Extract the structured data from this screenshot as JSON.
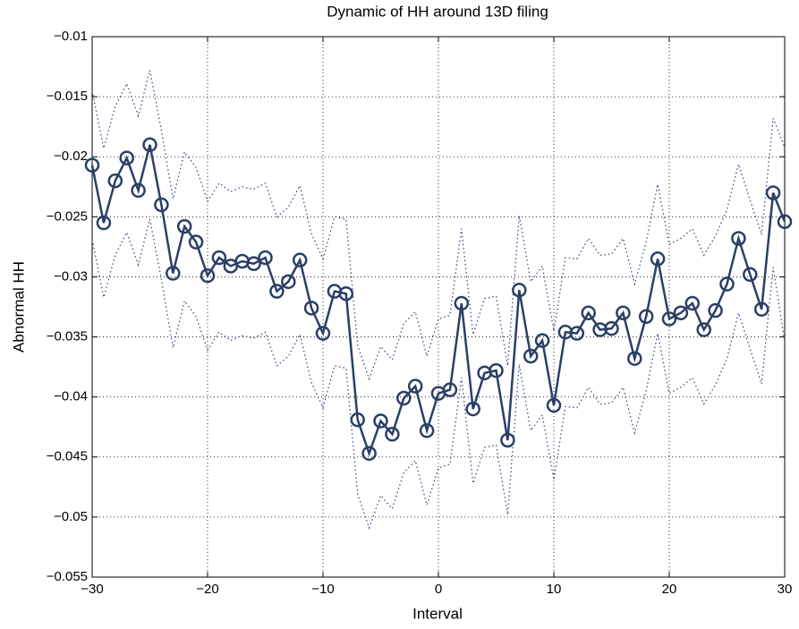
{
  "chart_data": {
    "type": "line",
    "title": "Dynamic of HH around 13D filing",
    "x_label": "Interval",
    "y_label": "Abnormal HH",
    "x": [
      -30,
      -29,
      -28,
      -27,
      -26,
      -25,
      -24,
      -23,
      -22,
      -21,
      -20,
      -19,
      -18,
      -17,
      -16,
      -15,
      -14,
      -13,
      -12,
      -11,
      -10,
      -9,
      -8,
      -7,
      -6,
      -5,
      -4,
      -3,
      -2,
      -1,
      0,
      1,
      2,
      3,
      4,
      5,
      6,
      7,
      8,
      9,
      10,
      11,
      12,
      13,
      14,
      15,
      16,
      17,
      18,
      19,
      20,
      21,
      22,
      23,
      24,
      25,
      26,
      27,
      28,
      29,
      30
    ],
    "series": [
      {
        "color": "#2b3f66",
        "style": "solid",
        "marker": "circle",
        "values": [
          -0.0207,
          -0.0255,
          -0.022,
          -0.0201,
          -0.0228,
          -0.019,
          -0.024,
          -0.0297,
          -0.0258,
          -0.0271,
          -0.0299,
          -0.0284,
          -0.0291,
          -0.0287,
          -0.0289,
          -0.0284,
          -0.0312,
          -0.0304,
          -0.0286,
          -0.0326,
          -0.0347,
          -0.0312,
          -0.0314,
          -0.0419,
          -0.0447,
          -0.042,
          -0.0431,
          -0.0401,
          -0.0391,
          -0.0428,
          -0.0397,
          -0.0394,
          -0.0322,
          -0.041,
          -0.038,
          -0.0378,
          -0.0436,
          -0.0311,
          -0.0366,
          -0.0353,
          -0.0407,
          -0.0346,
          -0.0347,
          -0.033,
          -0.0344,
          -0.0343,
          -0.033,
          -0.0368,
          -0.0333,
          -0.0285,
          -0.0335,
          -0.033,
          -0.0322,
          -0.0344,
          -0.0328,
          -0.0306,
          -0.0268,
          -0.0298,
          -0.0327,
          -0.023,
          -0.0254
        ]
      },
      {
        "color": "#3a4f80",
        "style": "dotted",
        "values": [
          -0.0145,
          -0.0193,
          -0.0158,
          -0.0139,
          -0.0166,
          -0.0128,
          -0.0178,
          -0.0235,
          -0.0196,
          -0.0209,
          -0.0237,
          -0.0222,
          -0.0229,
          -0.0225,
          -0.0227,
          -0.0222,
          -0.025,
          -0.0242,
          -0.0224,
          -0.0264,
          -0.0285,
          -0.025,
          -0.0252,
          -0.0357,
          -0.0385,
          -0.0358,
          -0.0369,
          -0.0339,
          -0.0329,
          -0.0366,
          -0.0335,
          -0.0332,
          -0.026,
          -0.0348,
          -0.0318,
          -0.0316,
          -0.0374,
          -0.0249,
          -0.0304,
          -0.0291,
          -0.0345,
          -0.0284,
          -0.0285,
          -0.0268,
          -0.0282,
          -0.0281,
          -0.0268,
          -0.0306,
          -0.0271,
          -0.0223,
          -0.0273,
          -0.0268,
          -0.026,
          -0.0282,
          -0.0266,
          -0.0244,
          -0.0206,
          -0.0236,
          -0.0265,
          -0.0168,
          -0.0192
        ]
      },
      {
        "color": "#3a4f80",
        "style": "dotted",
        "values": [
          -0.0269,
          -0.0317,
          -0.0282,
          -0.0263,
          -0.029,
          -0.0252,
          -0.0302,
          -0.0359,
          -0.032,
          -0.0333,
          -0.0361,
          -0.0346,
          -0.0353,
          -0.0349,
          -0.0351,
          -0.0346,
          -0.0374,
          -0.0366,
          -0.0348,
          -0.0388,
          -0.0409,
          -0.0374,
          -0.0376,
          -0.0481,
          -0.0509,
          -0.0482,
          -0.0493,
          -0.0463,
          -0.0453,
          -0.049,
          -0.0459,
          -0.0456,
          -0.0384,
          -0.0472,
          -0.0442,
          -0.044,
          -0.0498,
          -0.0373,
          -0.0428,
          -0.0415,
          -0.0469,
          -0.0408,
          -0.0409,
          -0.0392,
          -0.0406,
          -0.0405,
          -0.0392,
          -0.043,
          -0.0395,
          -0.0347,
          -0.0397,
          -0.0392,
          -0.0384,
          -0.0406,
          -0.039,
          -0.0368,
          -0.033,
          -0.036,
          -0.0389,
          -0.0292,
          -0.0354
        ]
      }
    ],
    "xlim": [
      -30,
      30
    ],
    "xticks": [
      {
        "value": -30,
        "label": "−30"
      },
      {
        "value": -20,
        "label": "−20"
      },
      {
        "value": -10,
        "label": "−10"
      },
      0,
      10,
      20,
      30
    ],
    "ylim": [
      -0.055,
      -0.01
    ],
    "yticks": [
      {
        "value": -0.055,
        "label": "−0.055"
      },
      {
        "value": -0.05,
        "label": "−0.05"
      },
      {
        "value": -0.045,
        "label": "−0.045"
      },
      {
        "value": -0.04,
        "label": "−0.04"
      },
      {
        "value": -0.035,
        "label": "−0.035"
      },
      {
        "value": -0.03,
        "label": "−0.03"
      },
      {
        "value": -0.025,
        "label": "−0.025"
      },
      {
        "value": -0.02,
        "label": "−0.02"
      },
      {
        "value": -0.015,
        "label": "−0.015"
      },
      {
        "value": -0.01,
        "label": "−0.01"
      }
    ],
    "grid": true
  }
}
